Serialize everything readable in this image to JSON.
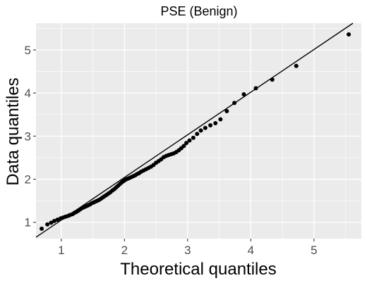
{
  "chart_data": {
    "type": "scatter",
    "title": "PSE (Benign)",
    "xlabel": "Theoretical quantiles",
    "ylabel": "Data quantiles",
    "xlim": [
      0.6,
      5.75
    ],
    "ylim": [
      0.62,
      5.62
    ],
    "x_ticks": [
      1,
      2,
      3,
      4,
      5
    ],
    "y_ticks": [
      1,
      2,
      3,
      4,
      5
    ],
    "x_tick_labels": [
      "1",
      "2",
      "3",
      "4",
      "5"
    ],
    "y_tick_labels": [
      "1",
      "2",
      "3",
      "4",
      "5"
    ],
    "grid": true,
    "reference_line": {
      "slope": 0.99,
      "intercept": 0.06
    },
    "series": [
      {
        "points": [
          [
            0.69,
            0.85
          ],
          [
            0.78,
            0.95
          ],
          [
            0.84,
            0.99
          ],
          [
            0.89,
            1.03
          ],
          [
            0.94,
            1.06
          ],
          [
            0.99,
            1.09
          ],
          [
            1.03,
            1.11
          ],
          [
            1.07,
            1.13
          ],
          [
            1.11,
            1.15
          ],
          [
            1.14,
            1.17
          ],
          [
            1.18,
            1.19
          ],
          [
            1.21,
            1.22
          ],
          [
            1.24,
            1.24
          ],
          [
            1.27,
            1.27
          ],
          [
            1.3,
            1.3
          ],
          [
            1.33,
            1.33
          ],
          [
            1.36,
            1.35
          ],
          [
            1.39,
            1.37
          ],
          [
            1.42,
            1.39
          ],
          [
            1.45,
            1.41
          ],
          [
            1.48,
            1.44
          ],
          [
            1.51,
            1.46
          ],
          [
            1.54,
            1.48
          ],
          [
            1.57,
            1.5
          ],
          [
            1.6,
            1.52
          ],
          [
            1.63,
            1.55
          ],
          [
            1.66,
            1.58
          ],
          [
            1.69,
            1.61
          ],
          [
            1.72,
            1.64
          ],
          [
            1.75,
            1.67
          ],
          [
            1.78,
            1.7
          ],
          [
            1.81,
            1.74
          ],
          [
            1.84,
            1.77
          ],
          [
            1.87,
            1.81
          ],
          [
            1.9,
            1.85
          ],
          [
            1.93,
            1.89
          ],
          [
            1.96,
            1.93
          ],
          [
            1.99,
            1.96
          ],
          [
            2.02,
            1.99
          ],
          [
            2.05,
            2.01
          ],
          [
            2.08,
            2.03
          ],
          [
            2.11,
            2.05
          ],
          [
            2.14,
            2.07
          ],
          [
            2.17,
            2.09
          ],
          [
            2.2,
            2.12
          ],
          [
            2.23,
            2.14
          ],
          [
            2.26,
            2.17
          ],
          [
            2.3,
            2.2
          ],
          [
            2.34,
            2.23
          ],
          [
            2.38,
            2.26
          ],
          [
            2.42,
            2.29
          ],
          [
            2.46,
            2.33
          ],
          [
            2.5,
            2.38
          ],
          [
            2.54,
            2.42
          ],
          [
            2.58,
            2.46
          ],
          [
            2.62,
            2.51
          ],
          [
            2.66,
            2.54
          ],
          [
            2.7,
            2.56
          ],
          [
            2.74,
            2.58
          ],
          [
            2.78,
            2.6
          ],
          [
            2.82,
            2.63
          ],
          [
            2.86,
            2.67
          ],
          [
            2.9,
            2.72
          ],
          [
            2.94,
            2.77
          ],
          [
            2.98,
            2.84
          ],
          [
            3.03,
            2.9
          ],
          [
            3.09,
            2.96
          ],
          [
            3.15,
            3.05
          ],
          [
            3.21,
            3.13
          ],
          [
            3.28,
            3.19
          ],
          [
            3.36,
            3.25
          ],
          [
            3.44,
            3.3
          ],
          [
            3.52,
            3.39
          ],
          [
            3.62,
            3.58
          ],
          [
            3.74,
            3.77
          ],
          [
            3.89,
            3.97
          ],
          [
            4.08,
            4.11
          ],
          [
            4.34,
            4.31
          ],
          [
            4.72,
            4.63
          ],
          [
            5.55,
            5.36
          ]
        ]
      }
    ]
  }
}
